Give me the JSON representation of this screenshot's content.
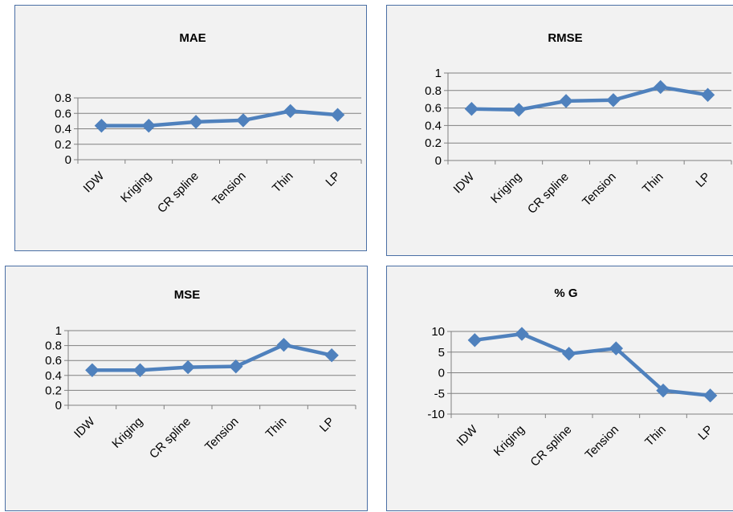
{
  "colors": {
    "series": "#4f81bd",
    "grid": "#808080",
    "panel_bg": "#f2f2f2",
    "panel_border": "#4a6fa5"
  },
  "chart_data": [
    {
      "type": "line",
      "title": "MAE",
      "categories": [
        "IDW",
        "Kriging",
        "CR spline",
        "Tension",
        "Thin",
        "LP"
      ],
      "values": [
        0.44,
        0.44,
        0.49,
        0.51,
        0.63,
        0.58
      ],
      "yticks": [
        "0",
        "0.2",
        "0.4",
        "0.6",
        "0.8"
      ],
      "ylim": [
        0,
        0.8
      ],
      "grid": true,
      "legend": "none"
    },
    {
      "type": "line",
      "title": "RMSE",
      "categories": [
        "IDW",
        "Kriging",
        "CR spline",
        "Tension",
        "Thin",
        "LP"
      ],
      "values": [
        0.59,
        0.58,
        0.68,
        0.69,
        0.84,
        0.75
      ],
      "yticks": [
        "0",
        "0.2",
        "0.4",
        "0.6",
        "0.8",
        "1"
      ],
      "ylim": [
        0,
        1
      ],
      "grid": true,
      "legend": "none"
    },
    {
      "type": "line",
      "title": "MSE",
      "categories": [
        "IDW",
        "Kriging",
        "CR spline",
        "Tension",
        "Thin",
        "LP"
      ],
      "values": [
        0.47,
        0.47,
        0.51,
        0.52,
        0.81,
        0.67
      ],
      "yticks": [
        "0",
        "0.2",
        "0.4",
        "0.6",
        "0.8",
        "1"
      ],
      "ylim": [
        0,
        1
      ],
      "grid": true,
      "legend": "none"
    },
    {
      "type": "line",
      "title": "% G",
      "categories": [
        "IDW",
        "Kriging",
        "CR spline",
        "Tension",
        "Thin",
        "LP"
      ],
      "values": [
        7.9,
        9.4,
        4.6,
        5.9,
        -4.3,
        -5.5
      ],
      "yticks": [
        "-10",
        "-5",
        "0",
        "5",
        "10"
      ],
      "ylim": [
        -10,
        10
      ],
      "grid": true,
      "legend": "none"
    }
  ]
}
